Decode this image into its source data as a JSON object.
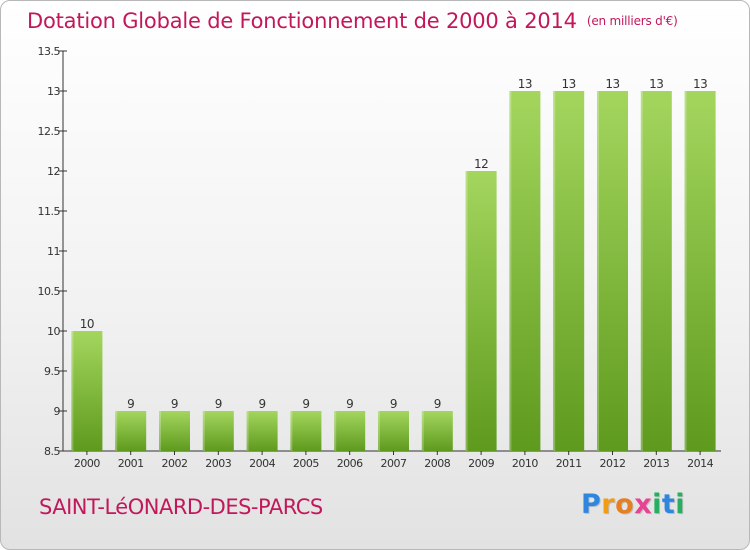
{
  "title": "Dotation Globale de Fonctionnement de 2000 à 2014",
  "unit": "(en milliers d'€)",
  "commune": "SAINT-LéONARD-DES-PARCS",
  "logo": {
    "letters": [
      "P",
      "r",
      "o",
      "x",
      "i",
      "t",
      "i"
    ],
    "colors": [
      "#2e86de",
      "#f39c12",
      "#e67e22",
      "#e84393",
      "#27ae60",
      "#2e86de",
      "#27ae60"
    ]
  },
  "colors": {
    "bar_light": "#a4d65e",
    "bar_dark": "#5e9a1e",
    "text": "#c2185b",
    "axis": "#333333"
  },
  "chart_data": {
    "type": "bar",
    "categories": [
      "2000",
      "2001",
      "2002",
      "2003",
      "2004",
      "2005",
      "2006",
      "2007",
      "2008",
      "2009",
      "2010",
      "2011",
      "2012",
      "2013",
      "2014"
    ],
    "values": [
      10,
      9,
      9,
      9,
      9,
      9,
      9,
      9,
      9,
      12,
      13,
      13,
      13,
      13,
      13
    ],
    "data_labels": [
      "10",
      "9",
      "9",
      "9",
      "9",
      "9",
      "9",
      "9",
      "9",
      "12",
      "13",
      "13",
      "13",
      "13",
      "13"
    ],
    "ylim": [
      8.5,
      13.5
    ],
    "yticks": [
      8.5,
      9,
      9.5,
      10,
      10.5,
      11,
      11.5,
      12,
      12.5,
      13,
      13.5
    ],
    "ytick_labels": [
      "8.5",
      "9",
      "9.5",
      "10",
      "10.5",
      "11",
      "11.5",
      "12",
      "12.5",
      "13",
      "13.5"
    ],
    "grid": false,
    "xlabel": "",
    "ylabel": ""
  }
}
